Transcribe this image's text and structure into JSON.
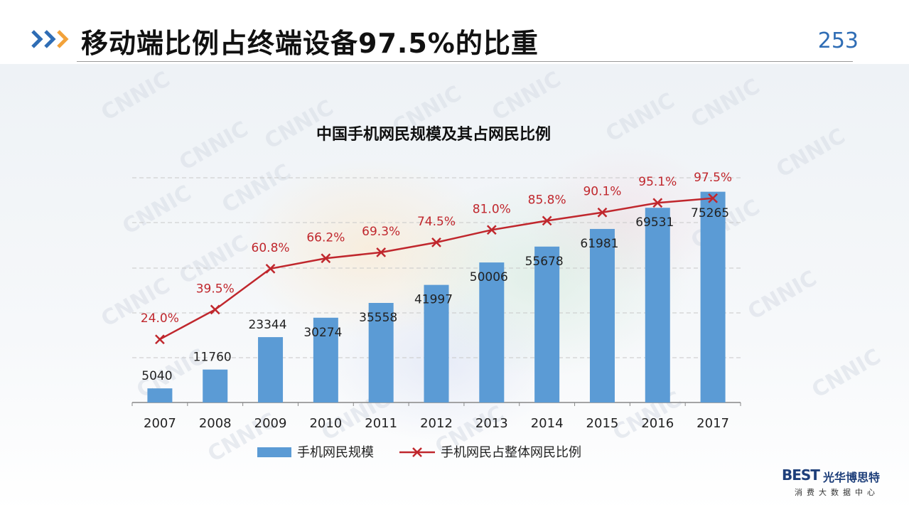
{
  "slide": {
    "title": "移动端比例占终端设备97.5%的比重",
    "page_number": "253"
  },
  "brand": {
    "logo_mark": "BEST",
    "logo_name": "光华博思特",
    "logo_tagline": "消费大数据中心",
    "watermark": "CNNIC"
  },
  "colors": {
    "bar": "#5b9bd5",
    "line": "#c0272d",
    "chevron_blue": "#2f6db5",
    "chevron_orange": "#f2a23a"
  },
  "chart_data": {
    "type": "bar",
    "title": "中国手机网民规模及其占网民比例",
    "categories": [
      "2007",
      "2008",
      "2009",
      "2010",
      "2011",
      "2012",
      "2013",
      "2014",
      "2015",
      "2016",
      "2017"
    ],
    "series": [
      {
        "name": "手机网民规模",
        "type": "bar",
        "values": [
          5040,
          11760,
          23344,
          30274,
          35558,
          41997,
          50006,
          55678,
          61981,
          69531,
          75265
        ],
        "labels": [
          "5040",
          "11760",
          "23344",
          "30274",
          "35558",
          "41997",
          "50006",
          "55678",
          "61981",
          "69531",
          "75265"
        ]
      },
      {
        "name": "手机网民占整体网民比例",
        "type": "line",
        "values": [
          24.0,
          39.5,
          60.8,
          66.2,
          69.3,
          74.5,
          81.0,
          85.8,
          90.1,
          95.1,
          97.5
        ],
        "labels": [
          "24.0%",
          "39.5%",
          "60.8%",
          "66.2%",
          "69.3%",
          "74.5%",
          "81.0%",
          "85.8%",
          "90.1%",
          "95.1%",
          "97.5%"
        ]
      }
    ],
    "grid": true,
    "legend": "bottom"
  }
}
